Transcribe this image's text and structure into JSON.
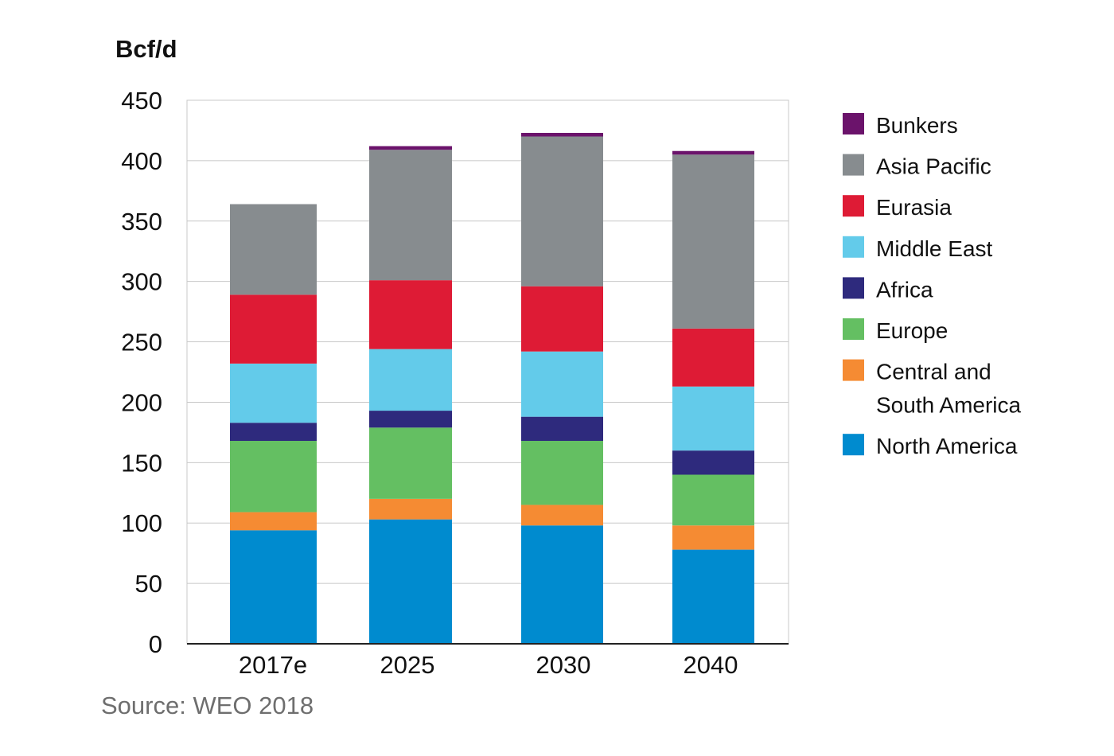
{
  "chart_data": {
    "type": "bar",
    "stacked": true,
    "ylabel": "Bcf/d",
    "categories": [
      "2017e",
      "2025",
      "2030",
      "2040"
    ],
    "ylim": [
      0,
      450
    ],
    "yticks": [
      0,
      50,
      100,
      150,
      200,
      250,
      300,
      350,
      400,
      450
    ],
    "grid": true,
    "legend_position": "right",
    "source": "Source: WEO 2018",
    "series": [
      {
        "name": "North America",
        "color": "#008bcf",
        "values": [
          94,
          103,
          98,
          78
        ]
      },
      {
        "name": "Central and South America",
        "legend_lines": [
          "Central and",
          "South America"
        ],
        "color": "#f58b33",
        "values": [
          15,
          17,
          17,
          20
        ]
      },
      {
        "name": "Europe",
        "color": "#64bf62",
        "values": [
          59,
          59,
          53,
          42
        ]
      },
      {
        "name": "Africa",
        "color": "#2e2a7d",
        "values": [
          15,
          14,
          20,
          20
        ]
      },
      {
        "name": "Middle East",
        "color": "#63cbea",
        "values": [
          49,
          51,
          54,
          53
        ]
      },
      {
        "name": "Eurasia",
        "color": "#de1b35",
        "values": [
          57,
          57,
          54,
          48
        ]
      },
      {
        "name": "Asia Pacific",
        "color": "#878c8f",
        "values": [
          75,
          108,
          124,
          144
        ]
      },
      {
        "name": "Bunkers",
        "color": "#6b136b",
        "values": [
          0,
          3,
          3,
          3
        ]
      }
    ]
  }
}
